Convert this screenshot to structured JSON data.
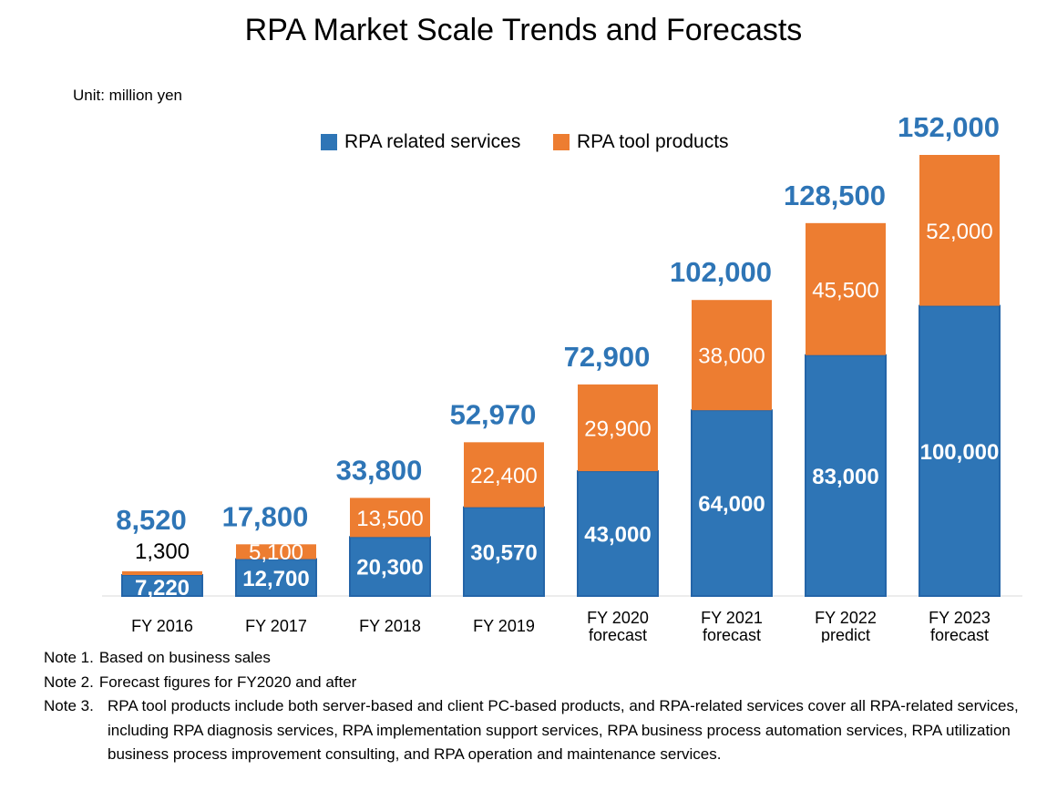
{
  "chart_data": {
    "type": "bar",
    "stacked": true,
    "title": "RPA Market Scale Trends and Forecasts",
    "unit_label": "Unit: million yen",
    "categories": [
      "FY 2016",
      "FY 2017",
      "FY 2018",
      "FY 2019",
      "FY 2020\nforecast",
      "FY 2021\nforecast",
      "FY 2022\npredict",
      "FY 2023\nforecast"
    ],
    "series": [
      {
        "name": "RPA related services",
        "color": "#2E75B6",
        "values": [
          7220,
          12700,
          20300,
          30570,
          43000,
          64000,
          83000,
          100000
        ],
        "labels": [
          "7,220",
          "12,700",
          "20,300",
          "30,570",
          "43,000",
          "64,000",
          "83,000",
          "100,000"
        ]
      },
      {
        "name": "RPA tool products",
        "color": "#ED7D31",
        "values": [
          1300,
          5100,
          13500,
          22400,
          29900,
          38000,
          45500,
          52000
        ],
        "labels": [
          "1,300",
          "5,100",
          "13,500",
          "22,400",
          "29,900",
          "38,000",
          "45,500",
          "52,000"
        ]
      }
    ],
    "totals": [
      8520,
      17800,
      33800,
      52970,
      72900,
      102000,
      128500,
      152000
    ],
    "total_labels": [
      "8,520",
      "17,800",
      "33,800",
      "52,970",
      "72,900",
      "102,000",
      "128,500",
      "152,000"
    ],
    "total_label_color": "#2E75B6",
    "ylim": [
      0,
      152000
    ],
    "legend_position": "top-center",
    "grid": false
  },
  "notes": [
    {
      "num": "Note 1.",
      "text": "Based on business sales"
    },
    {
      "num": "Note 2.",
      "text": "Forecast figures for FY2020 and after"
    },
    {
      "num": "Note 3.",
      "text": "RPA tool products include both server-based and client PC-based products, and RPA-related services cover all RPA-related services, including RPA diagnosis services, RPA implementation support services, RPA business process automation services, RPA utilization business process improvement consulting, and RPA operation and maintenance services."
    }
  ]
}
